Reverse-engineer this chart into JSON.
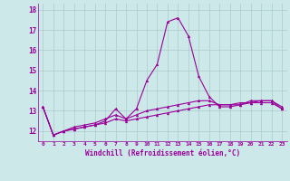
{
  "hours": [
    0,
    1,
    2,
    3,
    4,
    5,
    6,
    7,
    8,
    9,
    10,
    11,
    12,
    13,
    14,
    15,
    16,
    17,
    18,
    19,
    20,
    21,
    22,
    23
  ],
  "line1": [
    13.2,
    11.8,
    12.0,
    12.1,
    12.2,
    12.3,
    12.5,
    13.1,
    12.6,
    13.1,
    14.5,
    15.3,
    17.4,
    17.6,
    16.7,
    14.7,
    13.7,
    13.2,
    13.2,
    13.3,
    13.5,
    13.5,
    13.5,
    13.2
  ],
  "line2": [
    13.2,
    11.8,
    12.0,
    12.2,
    12.3,
    12.4,
    12.6,
    12.8,
    12.6,
    12.8,
    13.0,
    13.1,
    13.2,
    13.3,
    13.4,
    13.5,
    13.5,
    13.3,
    13.3,
    13.4,
    13.4,
    13.5,
    13.5,
    13.1
  ],
  "line3": [
    13.2,
    11.8,
    12.0,
    12.1,
    12.2,
    12.3,
    12.4,
    12.6,
    12.5,
    12.6,
    12.7,
    12.8,
    12.9,
    13.0,
    13.1,
    13.2,
    13.3,
    13.3,
    13.3,
    13.3,
    13.4,
    13.4,
    13.4,
    13.1
  ],
  "ylim": [
    11.5,
    18.3
  ],
  "yticks": [
    12,
    13,
    14,
    15,
    16,
    17,
    18
  ],
  "xticks": [
    0,
    1,
    2,
    3,
    4,
    5,
    6,
    7,
    8,
    9,
    10,
    11,
    12,
    13,
    14,
    15,
    16,
    17,
    18,
    19,
    20,
    21,
    22,
    23
  ],
  "xlabel": "Windchill (Refroidissement éolien,°C)",
  "line_color": "#990099",
  "bg_color": "#cce8e8",
  "grid_color": "#aacccc",
  "title_color": "#990099"
}
